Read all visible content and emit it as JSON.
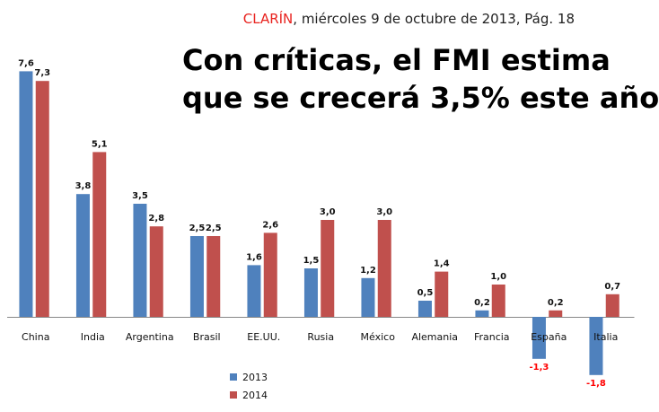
{
  "source": {
    "brand": "CLARÍN",
    "rest": ", miércoles 9 de octubre de 2013, Pág. 18"
  },
  "headline": {
    "line1": "Con críticas, el FMI estima",
    "line2": "que se crecerá 3,5% este año"
  },
  "colors": {
    "series_2013": "#4f81bd",
    "series_2014": "#c0504d",
    "negative_label": "#ff0000",
    "brand": "#e8231f"
  },
  "chart_data": {
    "type": "bar",
    "title": "",
    "xlabel": "",
    "ylabel": "",
    "ylim": [
      -2.5,
      8
    ],
    "grid": false,
    "legend_position": "bottom",
    "categories": [
      "China",
      "India",
      "Argentina",
      "Brasil",
      "EE.UU.",
      "Rusia",
      "México",
      "Alemania",
      "Francia",
      "España",
      "Italia"
    ],
    "series": [
      {
        "name": "2013",
        "values": [
          7.6,
          3.8,
          3.5,
          2.5,
          1.6,
          1.5,
          1.2,
          0.5,
          0.2,
          -1.3,
          -1.8
        ],
        "labels": [
          "7,6",
          "3,8",
          "3,5",
          "2,5",
          "1,6",
          "1,5",
          "1,2",
          "0,5",
          "0,2",
          "-1,3",
          "-1,8"
        ]
      },
      {
        "name": "2014",
        "values": [
          7.3,
          5.1,
          2.8,
          2.5,
          2.6,
          3.0,
          3.0,
          1.4,
          1.0,
          0.2,
          0.7
        ],
        "labels": [
          "7,3",
          "5,1",
          "2,8",
          "2,5",
          "2,6",
          "3,0",
          "3,0",
          "1,4",
          "1,0",
          "0,2",
          "0,7"
        ]
      }
    ]
  }
}
